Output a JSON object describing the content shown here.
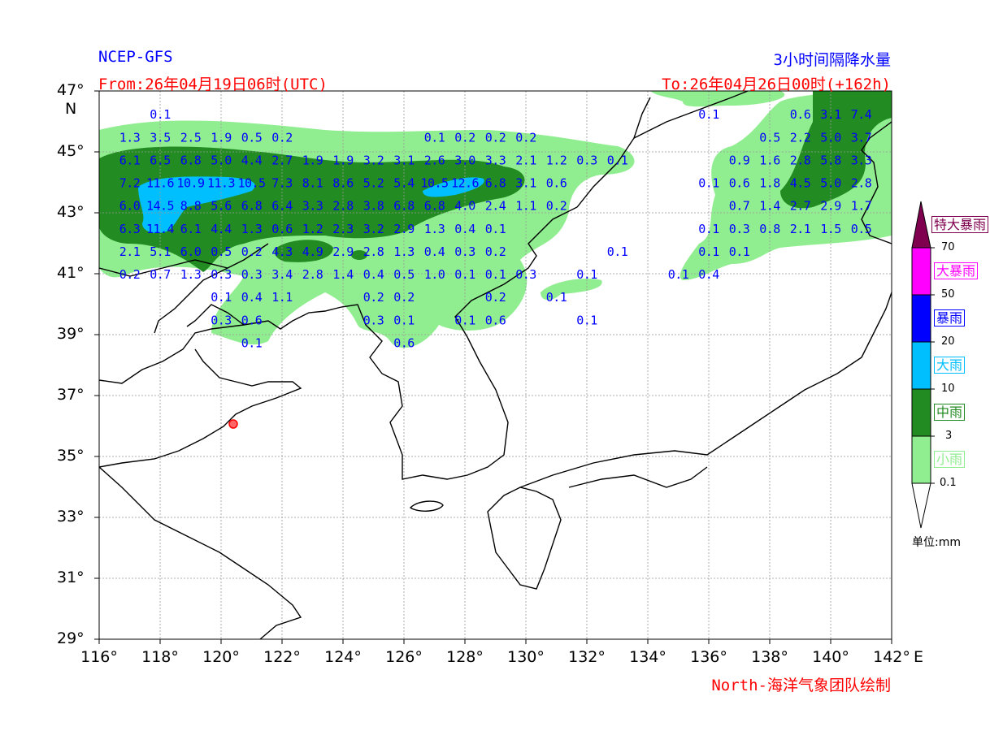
{
  "header": {
    "model": "NCEP-GFS",
    "from": "From:26年04月19日06时(UTC)",
    "title": "3小时间隔降水量",
    "to": "To:26年04月26日00时(+162h)",
    "credit": "North-海洋气象团队绘制"
  },
  "axes": {
    "lat_ticks": [
      "47°",
      "45°",
      "43°",
      "41°",
      "39°",
      "37°",
      "35°",
      "33°",
      "31°",
      "29°"
    ],
    "lat_values": [
      47,
      45,
      43,
      41,
      39,
      37,
      35,
      33,
      31,
      29
    ],
    "lat_unit": "N",
    "lon_ticks": [
      "116°",
      "118°",
      "120°",
      "122°",
      "124°",
      "126°",
      "128°",
      "130°",
      "132°",
      "134°",
      "136°",
      "138°",
      "140°",
      "142°"
    ],
    "lon_values": [
      116,
      118,
      120,
      122,
      124,
      126,
      128,
      130,
      132,
      134,
      136,
      138,
      140,
      142
    ],
    "lon_unit": "E",
    "lon_range": [
      116,
      142
    ],
    "lat_range": [
      29,
      47
    ]
  },
  "colorbar": {
    "levels": [
      "70",
      "50",
      "20",
      "10",
      "3",
      "0.1"
    ],
    "categories": [
      {
        "label": "特大暴雨",
        "color": "#800050"
      },
      {
        "label": "大暴雨",
        "color": "#ff00ff"
      },
      {
        "label": "暴雨",
        "color": "#0000ff"
      },
      {
        "label": "大雨",
        "color": "#00bfff"
      },
      {
        "label": "中雨",
        "color": "#228b22"
      },
      {
        "label": "小雨",
        "color": "#90ee90"
      }
    ],
    "unit": "单位:mm"
  },
  "chart_data": {
    "type": "heatmap",
    "title": "3小时间隔降水量",
    "units": "mm",
    "grid_lons": [
      117,
      118,
      119,
      120,
      121,
      122,
      123,
      124,
      125,
      126,
      127,
      128,
      129,
      130,
      131,
      132,
      133,
      134,
      135,
      136,
      137,
      138,
      139,
      140,
      141
    ],
    "rows": [
      {
        "lat": 46.25,
        "values": [
          "",
          "0.1",
          "",
          "",
          "",
          "",
          "",
          "",
          "",
          "",
          "",
          "",
          "",
          "",
          "",
          "",
          "",
          "",
          "",
          "0.1",
          "",
          "",
          "0.6",
          "3.1",
          "7.4"
        ]
      },
      {
        "lat": 45.5,
        "values": [
          "1.3",
          "3.5",
          "2.5",
          "1.9",
          "0.5",
          "0.2",
          "",
          "",
          "",
          "",
          "0.1",
          "0.2",
          "0.2",
          "0.2",
          "",
          "",
          "",
          "",
          "",
          "",
          "",
          "0.5",
          "2.2",
          "5.0",
          "3.7"
        ]
      },
      {
        "lat": 44.75,
        "values": [
          "6.1",
          "6.5",
          "6.8",
          "5.0",
          "4.4",
          "2.7",
          "1.9",
          "1.9",
          "3.2",
          "3.1",
          "2.6",
          "3.0",
          "3.3",
          "2.1",
          "1.2",
          "0.3",
          "0.1",
          "",
          "",
          "",
          "0.9",
          "1.6",
          "2.8",
          "5.8",
          "3.3"
        ]
      },
      {
        "lat": 44.0,
        "values": [
          "7.2",
          "11.6",
          "10.9",
          "11.3",
          "10.5",
          "7.3",
          "8.1",
          "8.6",
          "5.2",
          "5.4",
          "10.5",
          "12.6",
          "6.8",
          "3.1",
          "0.6",
          "",
          "",
          "",
          "",
          "0.1",
          "0.6",
          "1.8",
          "4.5",
          "5.0",
          "2.8"
        ]
      },
      {
        "lat": 43.25,
        "values": [
          "6.0",
          "14.5",
          "8.8",
          "5.6",
          "6.8",
          "6.4",
          "3.3",
          "2.8",
          "3.8",
          "6.8",
          "6.8",
          "4.0",
          "2.4",
          "1.1",
          "0.2",
          "",
          "",
          "",
          "",
          "",
          "0.7",
          "1.4",
          "2.7",
          "2.9",
          "1.7"
        ]
      },
      {
        "lat": 42.5,
        "values": [
          "6.3",
          "11.4",
          "6.1",
          "4.4",
          "1.3",
          "0.6",
          "1.2",
          "2.3",
          "3.2",
          "2.9",
          "1.3",
          "0.4",
          "0.1",
          "",
          "",
          "",
          "",
          "",
          "",
          "0.1",
          "0.3",
          "0.8",
          "2.1",
          "1.5",
          "0.5"
        ]
      },
      {
        "lat": 41.75,
        "values": [
          "2.1",
          "5.1",
          "6.0",
          "0.5",
          "0.2",
          "4.3",
          "4.9",
          "2.9",
          "2.8",
          "1.3",
          "0.4",
          "0.3",
          "0.2",
          "",
          "",
          "",
          "0.1",
          "",
          "",
          "0.1",
          "0.1",
          "",
          "",
          "",
          ""
        ]
      },
      {
        "lat": 41.0,
        "values": [
          "0.2",
          "0.7",
          "1.3",
          "0.3",
          "0.3",
          "3.4",
          "2.8",
          "1.4",
          "0.4",
          "0.5",
          "1.0",
          "0.1",
          "0.1",
          "0.3",
          "",
          "0.1",
          "",
          "",
          "0.1",
          "0.4",
          "",
          "",
          "",
          "",
          ""
        ]
      },
      {
        "lat": 40.25,
        "values": [
          "",
          "",
          "",
          "0.1",
          "0.4",
          "1.1",
          "",
          "",
          "0.2",
          "0.2",
          "",
          "",
          "0.2",
          "",
          "0.1",
          "",
          "",
          "",
          "",
          "",
          "",
          "",
          "",
          "",
          ""
        ]
      },
      {
        "lat": 39.5,
        "values": [
          "",
          "",
          "",
          "0.3",
          "0.6",
          "",
          "",
          "",
          "0.3",
          "0.1",
          "",
          "0.1",
          "0.6",
          "",
          "",
          "0.1",
          "",
          "",
          "",
          "",
          "",
          "",
          "",
          "",
          ""
        ]
      },
      {
        "lat": 38.75,
        "values": [
          "",
          "",
          "",
          "",
          "0.1",
          "",
          "",
          "",
          "",
          "0.6",
          "",
          "",
          "",
          "",
          "",
          "",
          "",
          "",
          "",
          "",
          "",
          "",
          "",
          "",
          ""
        ]
      }
    ]
  }
}
